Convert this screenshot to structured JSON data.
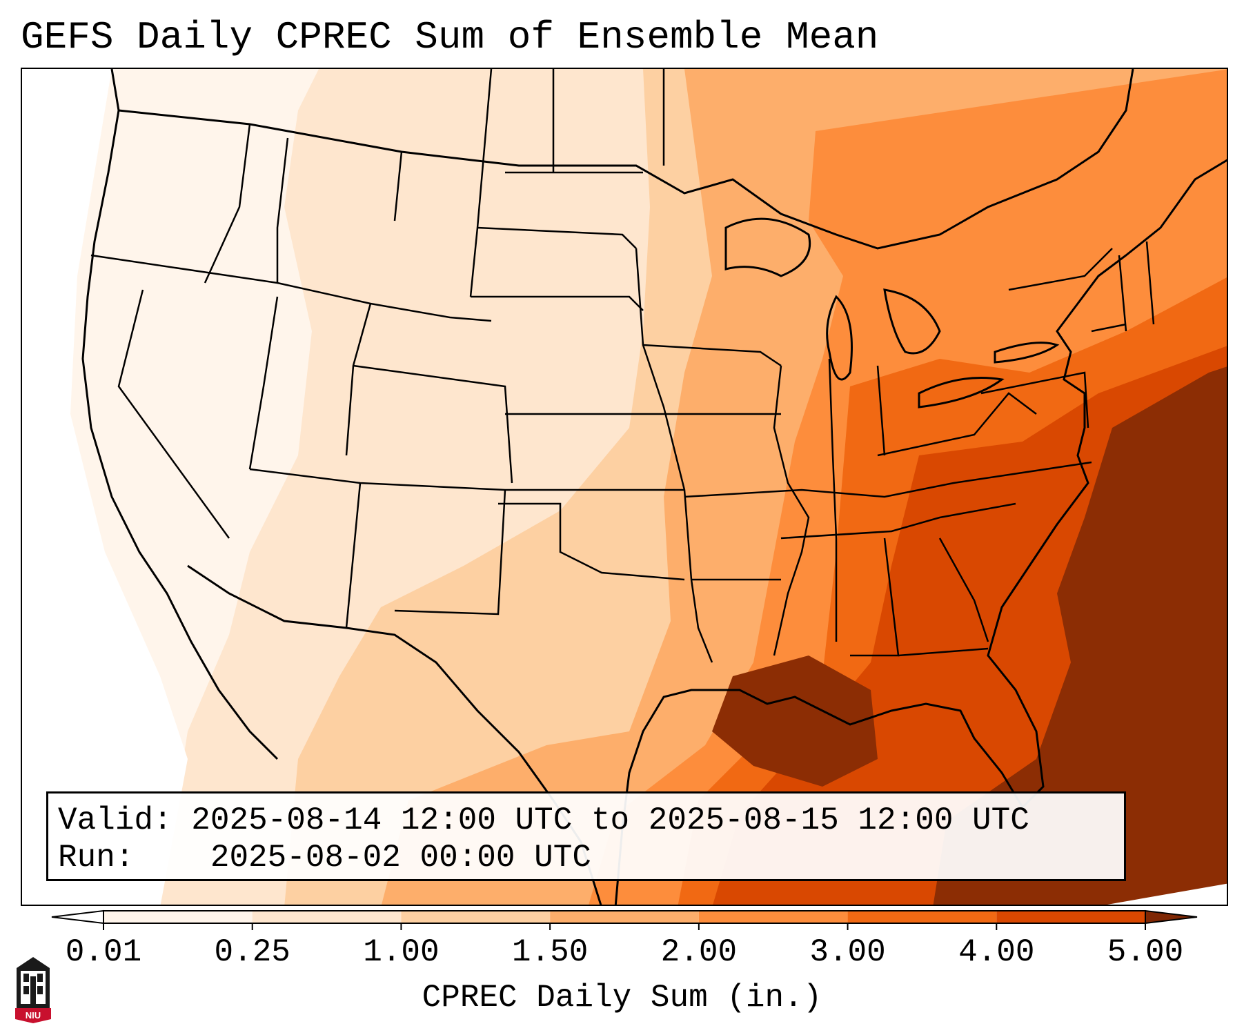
{
  "title": "GEFS Daily CPREC Sum of Ensemble Mean",
  "info": {
    "valid_label": "Valid:",
    "valid_value": "2025-08-14 12:00 UTC to 2025-08-15 12:00 UTC",
    "run_label": "Run:",
    "run_value": "2025-08-02 00:00 UTC"
  },
  "colorbar": {
    "label": "CPREC Daily Sum (in.)",
    "ticks": [
      "0.01",
      "0.25",
      "1.00",
      "1.50",
      "2.00",
      "3.00",
      "4.00",
      "5.00"
    ],
    "colors": [
      "#fff5eb",
      "#fee6ce",
      "#fdd0a2",
      "#fdae6b",
      "#fd8d3c",
      "#f16913",
      "#d94801",
      "#8c2d04"
    ],
    "under_color": "#ffffff",
    "over_color": "#7f2704"
  },
  "logo": {
    "text": "NIU",
    "name": "Northern Illinois University"
  },
  "map": {
    "region": "Contiguous United States",
    "variable": "CPREC",
    "units": "in."
  }
}
